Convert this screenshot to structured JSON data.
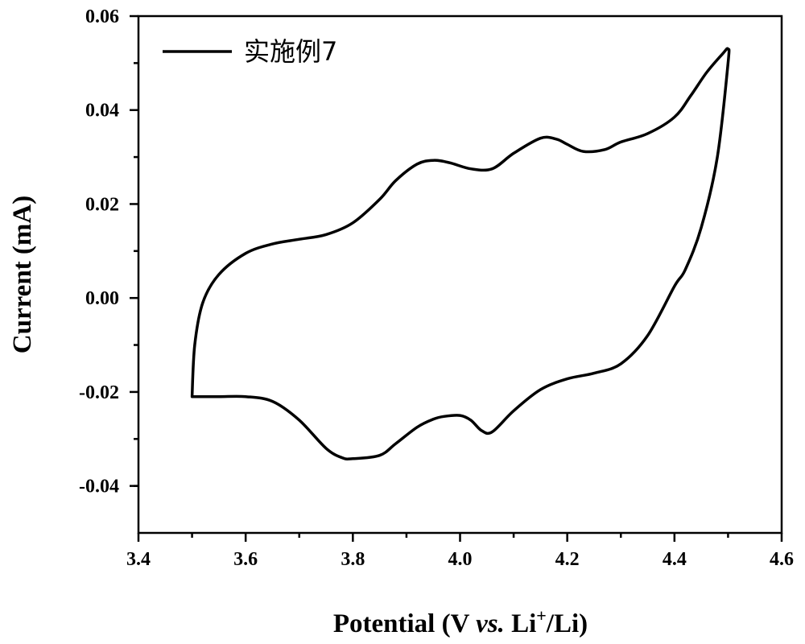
{
  "chart_data": {
    "type": "line",
    "title": "",
    "xlabel": {
      "prefix": "Potential (V ",
      "italic": "vs.",
      "mid": " Li",
      "sup": "+",
      "suffix": "/Li)"
    },
    "ylabel": "Current (mA)",
    "xlim": [
      3.4,
      4.6
    ],
    "ylim": [
      -0.05,
      0.06
    ],
    "xticks": [
      3.4,
      3.6,
      3.8,
      4.0,
      4.2,
      4.4,
      4.6
    ],
    "xtick_labels": [
      "3.4",
      "3.6",
      "3.8",
      "4.0",
      "4.2",
      "4.4",
      "4.6"
    ],
    "yticks": [
      -0.04,
      -0.02,
      0.0,
      0.02,
      0.04,
      0.06
    ],
    "ytick_labels": [
      "-0.04",
      "-0.02",
      "0.00",
      "0.02",
      "0.04",
      "0.06"
    ],
    "legend": {
      "position": "top-left",
      "entries": [
        "实施例7"
      ]
    },
    "series": [
      {
        "name": "实施例7",
        "color": "#000000",
        "x": [
          3.5,
          3.505,
          3.52,
          3.55,
          3.6,
          3.65,
          3.7,
          3.75,
          3.8,
          3.85,
          3.88,
          3.92,
          3.95,
          3.98,
          4.02,
          4.06,
          4.1,
          4.15,
          4.18,
          4.2,
          4.23,
          4.27,
          4.3,
          4.35,
          4.4,
          4.43,
          4.46,
          4.49,
          4.5,
          4.5,
          4.48,
          4.45,
          4.42,
          4.4,
          4.35,
          4.3,
          4.25,
          4.2,
          4.15,
          4.1,
          4.06,
          4.04,
          4.02,
          4.0,
          3.97,
          3.95,
          3.92,
          3.88,
          3.85,
          3.8,
          3.78,
          3.75,
          3.7,
          3.65,
          3.6,
          3.55,
          3.5
        ],
        "y": [
          -0.021,
          -0.01,
          -0.001,
          0.005,
          0.0095,
          0.0115,
          0.0125,
          0.0135,
          0.016,
          0.021,
          0.025,
          0.0285,
          0.0293,
          0.0288,
          0.0275,
          0.0275,
          0.0308,
          0.034,
          0.0338,
          0.0327,
          0.0312,
          0.0316,
          0.0332,
          0.035,
          0.0385,
          0.043,
          0.048,
          0.052,
          0.053,
          0.05,
          0.03,
          0.015,
          0.006,
          0.0025,
          -0.008,
          -0.014,
          -0.016,
          -0.0172,
          -0.0195,
          -0.024,
          -0.0285,
          -0.0282,
          -0.026,
          -0.025,
          -0.0252,
          -0.0258,
          -0.0275,
          -0.031,
          -0.0335,
          -0.0342,
          -0.034,
          -0.032,
          -0.026,
          -0.022,
          -0.021,
          -0.021,
          -0.021
        ]
      }
    ]
  }
}
